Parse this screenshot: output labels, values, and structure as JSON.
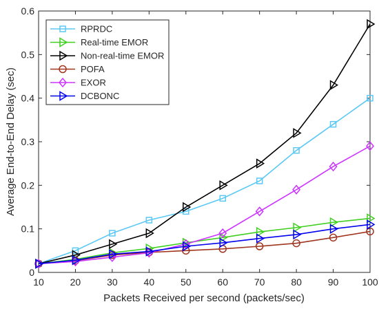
{
  "chart_data": {
    "type": "line",
    "title": "",
    "xlabel": "Packets Received per second (packets/sec)",
    "ylabel": "Average End-to-End Delay (sec)",
    "xlim": [
      10,
      100
    ],
    "ylim": [
      0,
      0.6
    ],
    "x_ticks": [
      10,
      20,
      30,
      40,
      50,
      60,
      70,
      80,
      90,
      100
    ],
    "y_ticks": [
      0,
      0.1,
      0.2,
      0.3,
      0.4,
      0.5,
      0.6
    ],
    "x_tick_labels": [
      "10",
      "20",
      "30",
      "40",
      "50",
      "60",
      "70",
      "80",
      "90",
      "100"
    ],
    "y_tick_labels": [
      "0",
      "0.1",
      "0.2",
      "0.3",
      "0.4",
      "0.5",
      "0.6"
    ],
    "grid": false,
    "legend_position": "top-left",
    "x": [
      10,
      20,
      30,
      40,
      50,
      60,
      70,
      80,
      90,
      100
    ],
    "series": [
      {
        "name": "RPRDC",
        "color": "#5bc8f5",
        "marker": "square",
        "values": [
          0.02,
          0.05,
          0.09,
          0.12,
          0.14,
          0.17,
          0.21,
          0.28,
          0.34,
          0.4
        ]
      },
      {
        "name": "Real-time EMOR",
        "color": "#3fcf1f",
        "marker": "triangle-right",
        "values": [
          0.02,
          0.03,
          0.045,
          0.055,
          0.068,
          0.08,
          0.093,
          0.103,
          0.115,
          0.124
        ]
      },
      {
        "name": "Non-real-time EMOR",
        "color": "#000000",
        "marker": "triangle-right",
        "values": [
          0.02,
          0.04,
          0.065,
          0.09,
          0.15,
          0.2,
          0.25,
          0.32,
          0.43,
          0.57
        ]
      },
      {
        "name": "POFA",
        "color": "#a0351f",
        "marker": "circle",
        "values": [
          0.02,
          0.027,
          0.04,
          0.046,
          0.05,
          0.054,
          0.06,
          0.067,
          0.08,
          0.094
        ]
      },
      {
        "name": "EXOR",
        "color": "#cc33ff",
        "marker": "diamond",
        "values": [
          0.02,
          0.025,
          0.035,
          0.045,
          0.065,
          0.09,
          0.14,
          0.19,
          0.243,
          0.29
        ]
      },
      {
        "name": "DCBONC",
        "color": "#0000ee",
        "marker": "triangle-right",
        "values": [
          0.02,
          0.028,
          0.042,
          0.048,
          0.06,
          0.068,
          0.078,
          0.087,
          0.1,
          0.11
        ]
      }
    ]
  }
}
